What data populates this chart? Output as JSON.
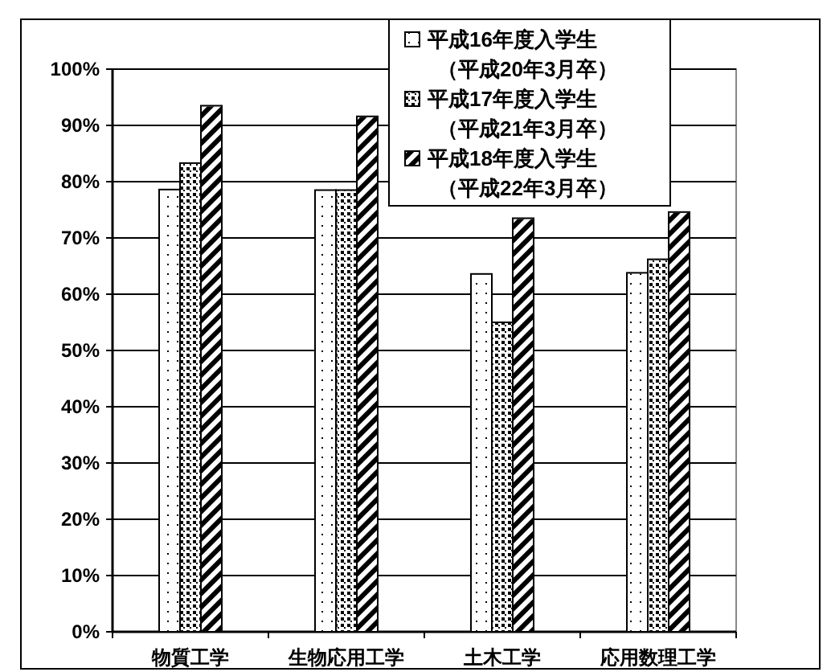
{
  "chart_data": {
    "type": "bar",
    "categories": [
      "物質工学",
      "生物応用工学",
      "土木工学",
      "応用数理工学"
    ],
    "series": [
      {
        "name": "平成16年度入学生（平成20年3月卒）",
        "color": "#ffffff",
        "values": [
          78.6,
          78.5,
          63.6,
          63.8
        ]
      },
      {
        "name": "平成17年度入学生（平成21年3月卒）",
        "color": "#ffffff",
        "values": [
          83.3,
          78.5,
          55.0,
          66.2
        ]
      },
      {
        "name": "平成18年度入学生（平成22年3月卒）",
        "color": "#ffffff",
        "values": [
          93.5,
          91.6,
          73.5,
          74.6
        ]
      }
    ],
    "ylim": [
      0,
      100
    ],
    "yticks": [
      {
        "value": 0,
        "label": "0%"
      },
      {
        "value": 10,
        "label": "10%"
      },
      {
        "value": 20,
        "label": "20%"
      },
      {
        "value": 30,
        "label": "30%"
      },
      {
        "value": 40,
        "label": "40%"
      },
      {
        "value": 50,
        "label": "50%"
      },
      {
        "value": 60,
        "label": "60%"
      },
      {
        "value": 70,
        "label": "70%"
      },
      {
        "value": 80,
        "label": "80%"
      },
      {
        "value": 90,
        "label": "90%"
      },
      {
        "value": 100,
        "label": "100%"
      }
    ],
    "grid": "y",
    "legend": "top"
  }
}
